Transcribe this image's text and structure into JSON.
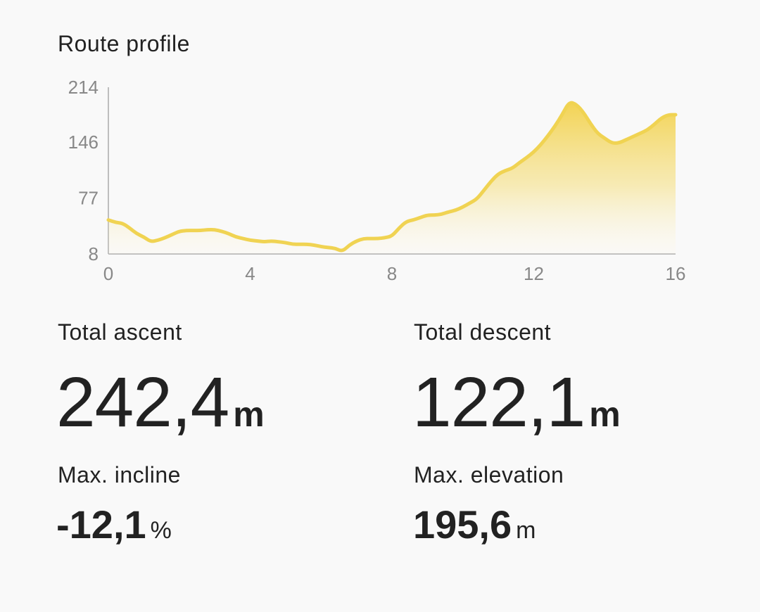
{
  "profile": {
    "title": "Route profile"
  },
  "chart_data": {
    "type": "area",
    "x_ticks": [
      "0",
      "4",
      "8",
      "12",
      "16"
    ],
    "y_ticks": [
      "8",
      "77",
      "146",
      "214"
    ],
    "xlim": [
      0,
      16
    ],
    "ylim": [
      8,
      214
    ],
    "grid": false,
    "color": "#f2d14b",
    "x": [
      0,
      0.2,
      0.4,
      0.6,
      0.8,
      1.0,
      1.2,
      1.4,
      1.6,
      1.8,
      2.0,
      2.2,
      2.4,
      2.6,
      2.8,
      3.0,
      3.2,
      3.4,
      3.6,
      3.8,
      4.0,
      4.2,
      4.4,
      4.6,
      4.8,
      5.0,
      5.2,
      5.4,
      5.6,
      5.8,
      6.0,
      6.2,
      6.4,
      6.6,
      6.8,
      7.0,
      7.2,
      7.4,
      7.6,
      7.8,
      8.0,
      8.2,
      8.4,
      8.6,
      8.8,
      9.0,
      9.2,
      9.4,
      9.6,
      9.8,
      10.0,
      10.2,
      10.4,
      10.6,
      10.8,
      11.0,
      11.2,
      11.4,
      11.6,
      11.8,
      12.0,
      12.2,
      12.4,
      12.6,
      12.8,
      13.0,
      13.2,
      13.4,
      13.6,
      13.8,
      14.0,
      14.2,
      14.4,
      14.6,
      14.8,
      15.0,
      15.2,
      15.4,
      15.6,
      15.8,
      16.0
    ],
    "y": [
      50,
      47,
      46,
      40,
      33,
      29,
      23,
      25,
      28,
      32,
      36,
      37,
      37,
      37,
      38,
      38,
      36,
      33,
      29,
      27,
      25,
      24,
      23,
      24,
      23,
      22,
      20,
      20,
      20,
      19,
      17,
      16,
      15,
      11,
      19,
      24,
      27,
      27,
      27,
      28,
      30,
      40,
      48,
      50,
      53,
      56,
      56,
      57,
      60,
      62,
      66,
      71,
      76,
      87,
      98,
      107,
      111,
      114,
      121,
      127,
      134,
      143,
      154,
      166,
      180,
      196,
      193,
      183,
      169,
      157,
      151,
      145,
      145,
      149,
      153,
      157,
      161,
      168,
      176,
      180,
      180
    ]
  },
  "stats": {
    "ascent": {
      "label": "Total ascent",
      "value": "242,4",
      "unit": "m"
    },
    "descent": {
      "label": "Total descent",
      "value": "122,1",
      "unit": "m"
    },
    "incline": {
      "label": "Max. incline",
      "value": "-12,1",
      "unit": "%"
    },
    "elevation": {
      "label": "Max. elevation",
      "value": "195,6",
      "unit": "m"
    }
  }
}
